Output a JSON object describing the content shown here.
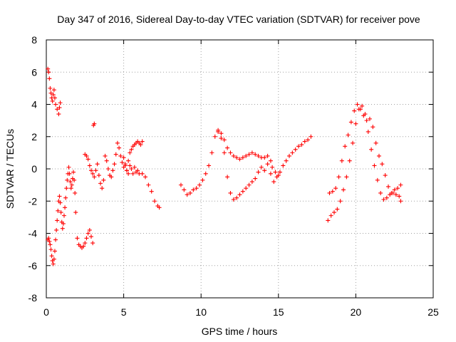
{
  "chart_data": {
    "type": "scatter",
    "title": "Day 347 of 2016, Sidereal Day-to-day VTEC variation (SDTVAR) for receiver pove",
    "xlabel": "GPS time / hours",
    "ylabel": "SDTVAR / TECUs",
    "xlim": [
      0,
      25
    ],
    "ylim": [
      -8,
      8
    ],
    "xticks": [
      0,
      5,
      10,
      15,
      20,
      25
    ],
    "yticks": [
      -8,
      -6,
      -4,
      -2,
      0,
      2,
      4,
      6,
      8
    ],
    "xtick_labels": [
      "0",
      "5",
      "10",
      "15",
      "20",
      "25"
    ],
    "ytick_labels": [
      "-8",
      "-6",
      "-4",
      "-2",
      "0",
      "2",
      "4",
      "6",
      "8"
    ],
    "grid": true,
    "marker": "+",
    "color": "#ff0000",
    "series": [
      {
        "name": "SDTVAR",
        "x": [
          0.1,
          0.15,
          0.2,
          0.25,
          0.3,
          0.35,
          0.4,
          0.45,
          0.5,
          0.55,
          0.6,
          0.7,
          0.8,
          0.85,
          0.9,
          0.1,
          0.15,
          0.2,
          0.25,
          0.3,
          0.35,
          0.4,
          0.45,
          0.5,
          0.55,
          0.6,
          0.65,
          0.7,
          0.75,
          0.8,
          0.85,
          0.9,
          0.95,
          1.0,
          1.05,
          1.1,
          1.15,
          1.2,
          1.25,
          1.3,
          1.35,
          1.4,
          1.45,
          1.5,
          1.55,
          1.6,
          1.65,
          1.7,
          1.75,
          1.8,
          1.85,
          1.9,
          2.0,
          2.1,
          2.2,
          2.3,
          2.4,
          2.5,
          2.6,
          2.7,
          2.8,
          2.9,
          3.0,
          3.05,
          3.1,
          2.5,
          2.6,
          2.7,
          2.8,
          2.9,
          3.0,
          3.1,
          3.2,
          3.3,
          3.4,
          3.5,
          3.6,
          3.7,
          3.8,
          3.9,
          4.0,
          4.1,
          4.2,
          4.3,
          4.4,
          4.5,
          4.6,
          4.7,
          4.8,
          4.9,
          5.0,
          5.1,
          5.2,
          5.3,
          5.4,
          5.5,
          5.6,
          5.7,
          5.8,
          5.9,
          6.0,
          6.1,
          6.2,
          5.0,
          5.1,
          5.2,
          5.3,
          5.4,
          5.5,
          5.6,
          5.7,
          5.8,
          5.9,
          6.0,
          6.2,
          6.4,
          6.6,
          6.8,
          7.0,
          7.2,
          7.3,
          8.7,
          8.9,
          9.1,
          9.3,
          9.5,
          9.7,
          9.9,
          10.1,
          10.3,
          10.5,
          10.7,
          10.9,
          11.1,
          11.3,
          11.5,
          11.7,
          11.9,
          12.1,
          12.3,
          12.5,
          12.7,
          12.9,
          13.1,
          13.3,
          13.5,
          13.7,
          13.9,
          14.1,
          14.3,
          14.5,
          14.6,
          14.8,
          15.0,
          11.1,
          11.3,
          11.5,
          11.7,
          11.9,
          12.1,
          12.3,
          12.5,
          12.7,
          12.9,
          13.1,
          13.3,
          13.5,
          13.7,
          13.9,
          14.1,
          14.3,
          14.5,
          14.7,
          14.9,
          15.1,
          15.3,
          15.5,
          15.7,
          15.9,
          16.1,
          16.3,
          16.5,
          16.7,
          16.9,
          17.1,
          18.2,
          18.4,
          18.6,
          18.8,
          19.0,
          19.2,
          19.4,
          19.6,
          19.8,
          20.0,
          20.2,
          20.4,
          20.6,
          20.8,
          21.0,
          21.2,
          21.4,
          21.6,
          21.8,
          22.0,
          22.2,
          22.4,
          22.6,
          22.8,
          22.9,
          18.3,
          18.5,
          18.7,
          18.9,
          19.1,
          19.3,
          19.5,
          19.7,
          19.9,
          20.1,
          20.3,
          20.5,
          20.7,
          20.9,
          21.1,
          21.3,
          21.5,
          21.7,
          21.9,
          22.1,
          22.3,
          22.5,
          22.7,
          22.9
        ],
        "y": [
          6.2,
          6.0,
          5.6,
          5.0,
          4.7,
          4.4,
          4.2,
          4.6,
          4.9,
          4.4,
          4.0,
          3.7,
          3.4,
          3.8,
          4.1,
          -4.4,
          -4.3,
          -4.5,
          -4.7,
          -5.0,
          -5.4,
          -5.7,
          -5.9,
          -5.6,
          -5.1,
          -4.4,
          -3.8,
          -3.2,
          -2.6,
          -2.0,
          -1.7,
          -2.1,
          -2.7,
          -3.3,
          -3.7,
          -3.4,
          -2.9,
          -2.4,
          -1.8,
          -1.2,
          -0.7,
          -0.3,
          0.1,
          -0.3,
          -0.8,
          -1.2,
          -1.0,
          -0.6,
          -0.2,
          -0.7,
          -1.5,
          -2.7,
          -4.3,
          -4.7,
          -4.8,
          -4.9,
          -4.8,
          -4.6,
          -4.3,
          -4.0,
          -3.8,
          -4.2,
          -4.6,
          2.7,
          2.8,
          0.9,
          0.8,
          0.6,
          0.2,
          -0.1,
          -0.3,
          -0.5,
          -0.1,
          0.3,
          -0.4,
          -0.9,
          -1.2,
          -0.7,
          0.8,
          0.5,
          0.0,
          -0.4,
          -0.5,
          -0.1,
          0.3,
          0.9,
          1.6,
          1.3,
          0.8,
          0.4,
          0.7,
          0.2,
          -0.1,
          0.5,
          1.0,
          1.2,
          1.4,
          1.5,
          1.6,
          1.7,
          1.6,
          1.5,
          1.7,
          0.1,
          0.3,
          -0.1,
          -0.3,
          0.2,
          0.0,
          -0.3,
          0.1,
          -0.2,
          -0.1,
          -0.3,
          -0.3,
          -0.5,
          -1.0,
          -1.4,
          -2.0,
          -2.3,
          -2.4,
          -1.0,
          -1.3,
          -1.6,
          -1.5,
          -1.3,
          -1.2,
          -1.0,
          -0.7,
          -0.3,
          0.2,
          1.0,
          2.0,
          2.4,
          2.2,
          1.8,
          1.3,
          1.0,
          0.8,
          0.7,
          0.6,
          0.7,
          0.8,
          0.9,
          1.0,
          0.9,
          0.8,
          0.7,
          0.7,
          0.8,
          0.5,
          0.1,
          -0.2,
          -0.4,
          2.3,
          1.9,
          1.0,
          -0.5,
          -1.5,
          -1.9,
          -1.8,
          -1.6,
          -1.4,
          -1.2,
          -1.0,
          -0.8,
          -0.6,
          -0.2,
          0.1,
          -0.1,
          0.3,
          -0.3,
          -0.8,
          -0.5,
          -0.2,
          0.2,
          0.5,
          0.8,
          1.0,
          1.2,
          1.4,
          1.5,
          1.7,
          1.8,
          2.0,
          -3.2,
          -2.9,
          -2.7,
          -2.5,
          -2.0,
          -1.3,
          -0.5,
          0.5,
          1.6,
          2.8,
          3.7,
          3.9,
          3.4,
          2.3,
          1.2,
          0.2,
          -0.7,
          -1.5,
          -1.9,
          -1.8,
          -1.6,
          -1.5,
          -1.6,
          -1.7,
          -2.0,
          -1.5,
          -1.4,
          -1.2,
          -0.5,
          0.5,
          1.4,
          2.1,
          2.9,
          3.6,
          4.0,
          3.7,
          3.3,
          3.0,
          3.1,
          2.6,
          1.6,
          0.8,
          0.3,
          -0.4,
          -1.1,
          -1.5,
          -1.3,
          -1.2,
          -1.0
        ]
      }
    ]
  }
}
